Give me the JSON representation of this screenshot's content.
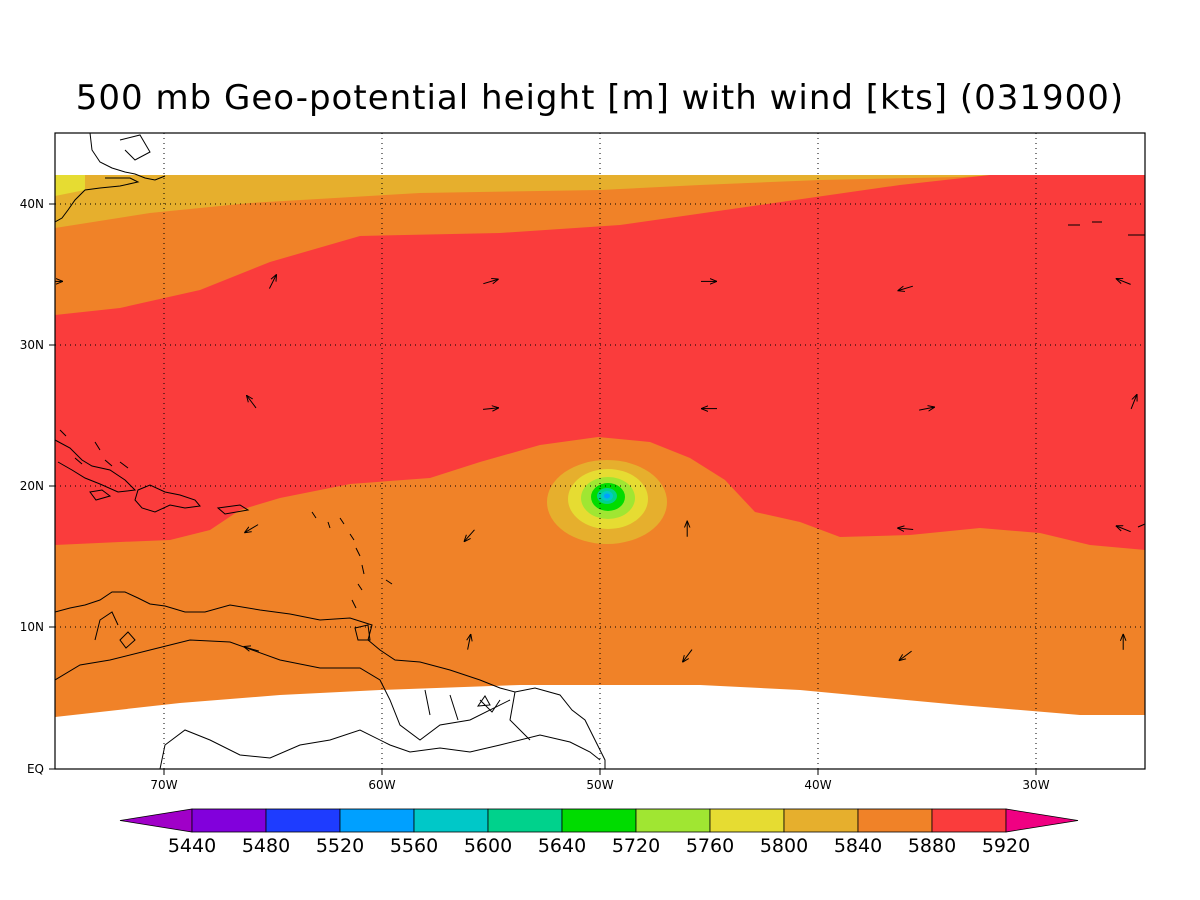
{
  "title": "500 mb Geo-potential height [m] with wind [kts] (031900)",
  "chart_data": {
    "type": "heatmap",
    "field": "500 mb geopotential height",
    "units": "m",
    "time_code": "031900",
    "lon_range": [
      -75,
      -25
    ],
    "lat_range": [
      0,
      45
    ],
    "lat_labels": [
      "EQ",
      "10N",
      "20N",
      "30N",
      "40N"
    ],
    "lon_labels": [
      "70W",
      "60W",
      "50W",
      "40W",
      "30W"
    ],
    "grid": true,
    "colorbar": {
      "labels": [
        "5440",
        "5480",
        "5520",
        "5560",
        "5600",
        "5640",
        "5720",
        "5760",
        "5800",
        "5840",
        "5880",
        "5920"
      ],
      "colors": [
        "#a000c8",
        "#8200dc",
        "#1e3cff",
        "#00a0ff",
        "#00c8c8",
        "#00d28c",
        "#00dc00",
        "#a0e632",
        "#e6dc32",
        "#e6af2d",
        "#f08228",
        "#fa3c3c",
        "#f00082"
      ]
    },
    "features": [
      {
        "name": "low center",
        "lon": -50,
        "lat": 19,
        "min_height_bin": "5520-5560"
      }
    ],
    "wind_vectors": [
      {
        "lon": -75,
        "lat": 34.5,
        "u": 1,
        "v": 0
      },
      {
        "lon": -65,
        "lat": 34.5,
        "u": 0.5,
        "v": 1
      },
      {
        "lon": -55,
        "lat": 34.5,
        "u": 1,
        "v": 0.3
      },
      {
        "lon": -45,
        "lat": 34.5,
        "u": 1,
        "v": 0
      },
      {
        "lon": -36,
        "lat": 34,
        "u": -1,
        "v": -0.3
      },
      {
        "lon": -26,
        "lat": 34.5,
        "u": -1,
        "v": 0.4
      },
      {
        "lon": -66,
        "lat": 26,
        "u": -0.6,
        "v": 0.8
      },
      {
        "lon": -55,
        "lat": 25.5,
        "u": 1,
        "v": 0.1
      },
      {
        "lon": -45,
        "lat": 25.5,
        "u": -1,
        "v": 0
      },
      {
        "lon": -35,
        "lat": 25.5,
        "u": 1,
        "v": 0.2
      },
      {
        "lon": -25.5,
        "lat": 26,
        "u": 0.4,
        "v": 1
      },
      {
        "lon": -66,
        "lat": 17,
        "u": -1,
        "v": -0.6
      },
      {
        "lon": -56,
        "lat": 16.5,
        "u": -0.7,
        "v": -0.8
      },
      {
        "lon": -46,
        "lat": 17,
        "u": 0,
        "v": 1
      },
      {
        "lon": -36,
        "lat": 17,
        "u": -1,
        "v": 0.1
      },
      {
        "lon": -26,
        "lat": 17,
        "u": -1,
        "v": 0.4
      },
      {
        "lon": -66,
        "lat": 8.5,
        "u": -1,
        "v": 0.3
      },
      {
        "lon": -56,
        "lat": 9,
        "u": 0.2,
        "v": 1
      },
      {
        "lon": -46,
        "lat": 8,
        "u": -0.6,
        "v": -0.8
      },
      {
        "lon": -36,
        "lat": 8,
        "u": -0.8,
        "v": -0.6
      },
      {
        "lon": -26,
        "lat": 9,
        "u": 0,
        "v": 1
      }
    ]
  }
}
